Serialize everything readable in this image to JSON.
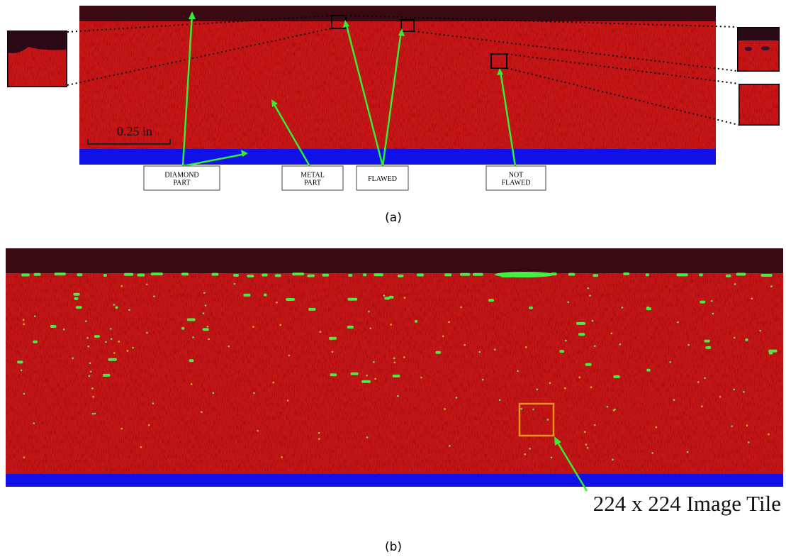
{
  "panel_a": {
    "scale_bar": "0.25 in",
    "labels": [
      {
        "lines": [
          "DIAMOND",
          "PART"
        ]
      },
      {
        "lines": [
          "METAL",
          "PART"
        ]
      },
      {
        "lines": [
          "FLAWED"
        ]
      },
      {
        "lines": [
          "NOT",
          "FLAWED"
        ]
      }
    ],
    "caption": "(a)"
  },
  "panel_b": {
    "tile_label": "224 x 224 Image Tile",
    "caption": "(b)"
  }
}
